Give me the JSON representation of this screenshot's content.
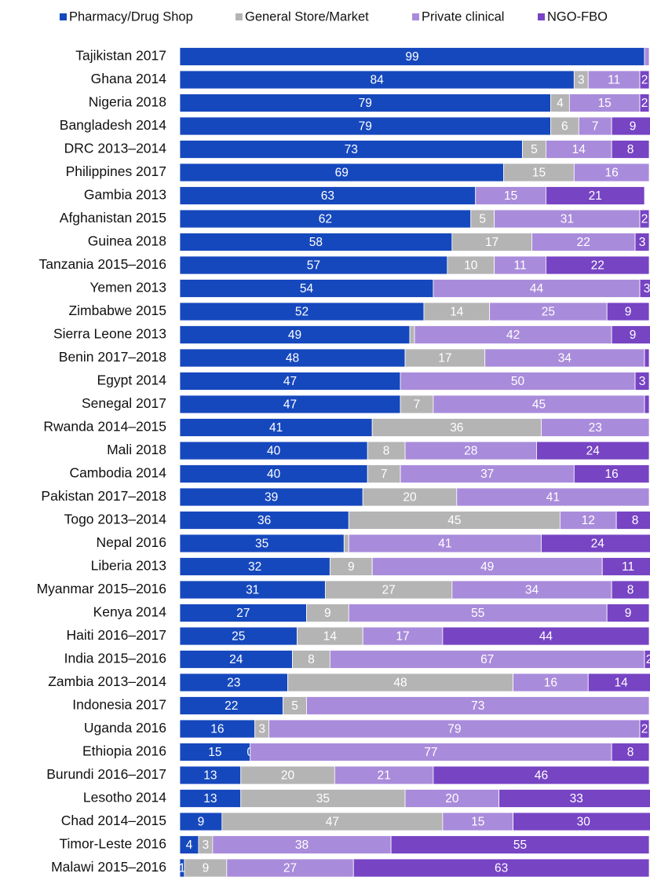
{
  "chart_data": {
    "type": "stacked-bar-horizontal",
    "categories": [
      "Tajikistan 2017",
      "Ghana 2014",
      "Nigeria 2018",
      "Bangladesh 2014",
      "DRC 2013–2014",
      "Philippines 2017",
      "Gambia 2013",
      "Afghanistan 2015",
      "Guinea 2018",
      "Tanzania 2015–2016",
      "Yemen 2013",
      "Zimbabwe 2015",
      "Sierra Leone 2013",
      "Benin 2017–2018",
      "Egypt 2014",
      "Senegal 2017",
      "Rwanda 2014–2015",
      "Mali 2018",
      "Cambodia 2014",
      "Pakistan 2017–2018",
      "Togo 2013–2014",
      "Nepal 2016",
      "Liberia 2013",
      "Myanmar 2015–2016",
      "Kenya 2014",
      "Haiti 2016–2017",
      "India 2015–2016",
      "Zambia 2013–2014",
      "Indonesia 2017",
      "Uganda 2016",
      "Ethiopia 2016",
      "Burundi 2016–2017",
      "Lesotho 2014",
      "Chad 2014–2015",
      "Timor-Leste 2016",
      "Malawi 2015–2016"
    ],
    "series": [
      {
        "name": "Pharmacy/Drug Shop",
        "color": "#1648bd",
        "values": [
          99,
          84,
          79,
          79,
          73,
          69,
          63,
          62,
          58,
          57,
          54,
          52,
          49,
          48,
          47,
          47,
          41,
          40,
          40,
          39,
          36,
          35,
          32,
          31,
          27,
          25,
          24,
          23,
          22,
          16,
          15,
          13,
          13,
          9,
          4,
          1
        ],
        "value_labels": [
          "99",
          "84",
          "79",
          "79",
          "73",
          "69",
          "63",
          "62",
          "58",
          "57",
          "54",
          "52",
          "49",
          "48",
          "47",
          "47",
          "41",
          "40",
          "40",
          "39",
          "36",
          "35",
          "32",
          "31",
          "27",
          "25",
          "24",
          "23",
          "22",
          "16",
          "15",
          "13",
          "13",
          "9",
          "4",
          "1"
        ]
      },
      {
        "name": "General Store/Market",
        "color": "#b4b4b4",
        "values": [
          0,
          3,
          4,
          6,
          5,
          15,
          0,
          5,
          17,
          10,
          0,
          14,
          1,
          17,
          0,
          7,
          36,
          8,
          7,
          20,
          45,
          1,
          9,
          27,
          9,
          14,
          8,
          48,
          5,
          3,
          0,
          20,
          35,
          47,
          3,
          9
        ],
        "value_labels": [
          null,
          "3",
          "4",
          "6",
          "5",
          "15",
          null,
          "5",
          "17",
          "10",
          null,
          "14",
          null,
          "17",
          null,
          "7",
          "36",
          "8",
          "7",
          "20",
          "45",
          null,
          "9",
          "27",
          "9",
          "14",
          "8",
          "48",
          "5",
          "3",
          "0",
          "20",
          "35",
          "47",
          "3",
          "9"
        ]
      },
      {
        "name": "Private clinical",
        "color": "#a98bdb",
        "values": [
          1,
          11,
          15,
          7,
          14,
          16,
          15,
          31,
          22,
          11,
          44,
          25,
          42,
          34,
          50,
          45,
          23,
          28,
          37,
          41,
          12,
          41,
          49,
          34,
          55,
          17,
          67,
          16,
          73,
          79,
          77,
          21,
          20,
          15,
          38,
          27
        ],
        "value_labels": [
          null,
          "11",
          "15",
          "7",
          "14",
          "16",
          "15",
          "31",
          "22",
          "11",
          "44",
          "25",
          "42",
          "34",
          "50",
          "45",
          "23",
          "28",
          "37",
          "41",
          "12",
          "41",
          "49",
          "34",
          "55",
          "17",
          "67",
          "16",
          "73",
          "79",
          "77",
          "21",
          "20",
          "15",
          "38",
          "27"
        ]
      },
      {
        "name": "NGO-FBO",
        "color": "#7744c4",
        "values": [
          0,
          2,
          2,
          9,
          8,
          0,
          21,
          2,
          3,
          22,
          3,
          9,
          9,
          1,
          3,
          1,
          0,
          24,
          16,
          0,
          8,
          24,
          11,
          8,
          9,
          44,
          2,
          14,
          0,
          2,
          8,
          46,
          33,
          30,
          55,
          63
        ],
        "value_labels": [
          null,
          "2",
          "2",
          "9",
          "8",
          null,
          "21",
          "2",
          "3",
          "22",
          "3",
          "9",
          "9",
          null,
          "3",
          null,
          null,
          "24",
          "16",
          null,
          "8",
          "24",
          "11",
          "8",
          "9",
          "44",
          "2",
          "14",
          null,
          "2",
          "8",
          "46",
          "33",
          "30",
          "55",
          "63"
        ]
      }
    ],
    "xlim": [
      0,
      100
    ]
  }
}
